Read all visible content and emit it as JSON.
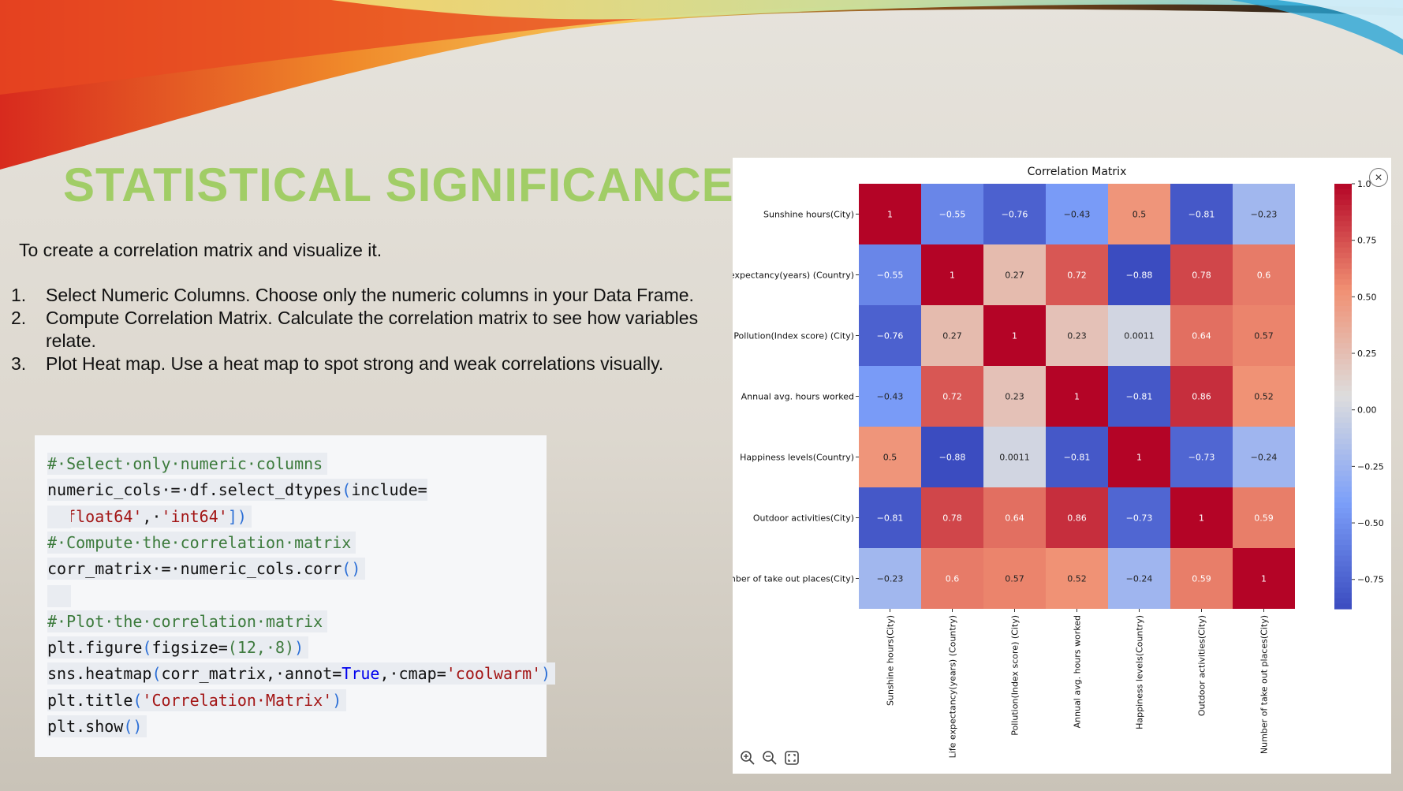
{
  "slide": {
    "title": "STATISTICAL SIGNIFICANCE:",
    "intro": "To create a correlation matrix and visualize it.",
    "steps": [
      {
        "num": "1.",
        "text": "Select Numeric Columns. Choose only the numeric columns in your Data Frame."
      },
      {
        "num": "2.",
        "text": "Compute Correlation Matrix. Calculate the correlation matrix to see how variables relate."
      },
      {
        "num": "3.",
        "text": "Plot Heat map. Use a heat map to spot strong and weak correlations visually."
      }
    ],
    "title_color": "#a1cd66"
  },
  "code": {
    "lines": [
      [
        {
          "t": "# Select only numeric columns",
          "c": "comment"
        }
      ],
      [
        {
          "t": "numeric_cols = df.select_dtypes",
          "c": "text"
        },
        {
          "t": "(",
          "c": "paren"
        },
        {
          "t": "include=[",
          "c": "text"
        },
        {
          "t": "'float64'",
          "c": "str"
        },
        {
          "t": ", ",
          "c": "text"
        },
        {
          "t": "'int64'",
          "c": "str"
        },
        {
          "t": "])",
          "c": "paren"
        }
      ],
      [],
      [
        {
          "t": "# Compute the correlation matrix",
          "c": "comment"
        }
      ],
      [
        {
          "t": "corr_matrix = numeric_cols.corr",
          "c": "text"
        },
        {
          "t": "()",
          "c": "paren"
        }
      ],
      [],
      [
        {
          "t": "# Plot the correlation matrix",
          "c": "comment"
        }
      ],
      [
        {
          "t": "plt.figure",
          "c": "text"
        },
        {
          "t": "(",
          "c": "paren"
        },
        {
          "t": "figsize=",
          "c": "text"
        },
        {
          "t": "(12, 8)",
          "c": "num"
        },
        {
          "t": ")",
          "c": "paren"
        }
      ],
      [
        {
          "t": "sns.heatmap",
          "c": "text"
        },
        {
          "t": "(",
          "c": "paren"
        },
        {
          "t": "corr_matrix, annot=",
          "c": "text"
        },
        {
          "t": "True",
          "c": "kw"
        },
        {
          "t": ", cmap=",
          "c": "text"
        },
        {
          "t": "'coolwarm'",
          "c": "str"
        },
        {
          "t": ")",
          "c": "paren"
        }
      ],
      [
        {
          "t": "plt.title",
          "c": "text"
        },
        {
          "t": "(",
          "c": "paren"
        },
        {
          "t": "'Correlation Matrix'",
          "c": "str"
        },
        {
          "t": ")",
          "c": "paren"
        }
      ],
      [
        {
          "t": "plt.show",
          "c": "text"
        },
        {
          "t": "()",
          "c": "paren"
        }
      ]
    ]
  },
  "figure": {
    "close_label": "×",
    "toolbar": [
      {
        "name": "zoom-in-icon"
      },
      {
        "name": "zoom-out-icon"
      },
      {
        "name": "fit-screen-icon"
      }
    ]
  },
  "chart_data": {
    "type": "heatmap",
    "title": "Correlation Matrix",
    "labels": [
      "Sunshine hours(City)",
      "Life expectancy(years) (Country)",
      "Pollution(Index score) (City)",
      "Annual avg. hours worked",
      "Happiness levels(Country)",
      "Outdoor activities(City)",
      "Number of take out places(City)"
    ],
    "values": [
      [
        1,
        -0.55,
        -0.76,
        -0.43,
        0.5,
        -0.81,
        -0.23
      ],
      [
        -0.55,
        1,
        0.27,
        0.72,
        -0.88,
        0.78,
        0.6
      ],
      [
        -0.76,
        0.27,
        1,
        0.23,
        0.0011,
        0.64,
        0.57
      ],
      [
        -0.43,
        0.72,
        0.23,
        1,
        -0.81,
        0.86,
        0.52
      ],
      [
        0.5,
        -0.88,
        0.0011,
        -0.81,
        1,
        -0.73,
        -0.24
      ],
      [
        -0.81,
        0.78,
        0.64,
        0.86,
        -0.73,
        1,
        0.59
      ],
      [
        -0.23,
        0.6,
        0.57,
        0.52,
        -0.24,
        0.59,
        1
      ]
    ],
    "colorbar": {
      "range": [
        -0.88,
        1.0
      ],
      "ticks": [
        1.0,
        0.75,
        0.5,
        0.25,
        0.0,
        -0.25,
        -0.5,
        -0.75
      ],
      "tick_labels": [
        "1.0",
        "0.75",
        "0.50",
        "0.25",
        "0.00",
        "−0.25",
        "−0.50",
        "−0.75"
      ]
    },
    "cmap": "coolwarm"
  }
}
